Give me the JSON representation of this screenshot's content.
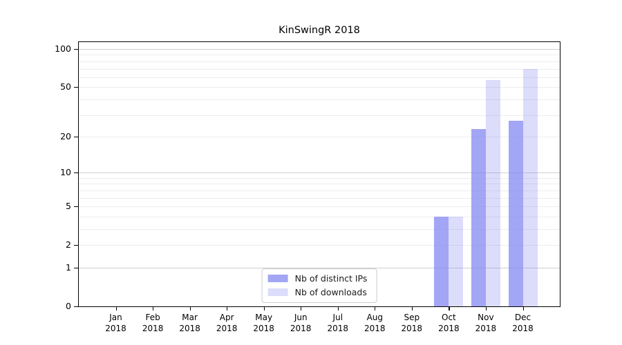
{
  "chart_data": {
    "type": "bar",
    "title": "KinSwingR 2018",
    "xlabel": "",
    "ylabel": "",
    "y_scale": "log1p",
    "y_ticks": [
      0,
      1,
      2,
      5,
      10,
      20,
      50,
      100
    ],
    "ylim": [
      0,
      113
    ],
    "grid": "horizontal",
    "legend_position": "bottom-center",
    "background_color": "#ffffff",
    "frame_color": "#000000",
    "grid_minor_color": "#ececec",
    "grid_major_color": "#cfcfcf",
    "categories": [
      {
        "month": "Jan",
        "year": "2018"
      },
      {
        "month": "Feb",
        "year": "2018"
      },
      {
        "month": "Mar",
        "year": "2018"
      },
      {
        "month": "Apr",
        "year": "2018"
      },
      {
        "month": "May",
        "year": "2018"
      },
      {
        "month": "Jun",
        "year": "2018"
      },
      {
        "month": "Jul",
        "year": "2018"
      },
      {
        "month": "Aug",
        "year": "2018"
      },
      {
        "month": "Sep",
        "year": "2018"
      },
      {
        "month": "Oct",
        "year": "2018"
      },
      {
        "month": "Nov",
        "year": "2018"
      },
      {
        "month": "Dec",
        "year": "2018"
      }
    ],
    "series": [
      {
        "name": "Nb of distinct IPs",
        "color": "rgba(128,131,240,0.72)",
        "values": [
          0,
          0,
          0,
          0,
          0,
          0,
          0,
          0,
          0,
          4,
          23,
          27
        ]
      },
      {
        "name": "Nb of downloads",
        "color": "rgba(128,131,240,0.28)",
        "values": [
          0,
          0,
          0,
          0,
          0,
          0,
          0,
          0,
          0,
          4,
          57,
          70
        ]
      }
    ]
  }
}
